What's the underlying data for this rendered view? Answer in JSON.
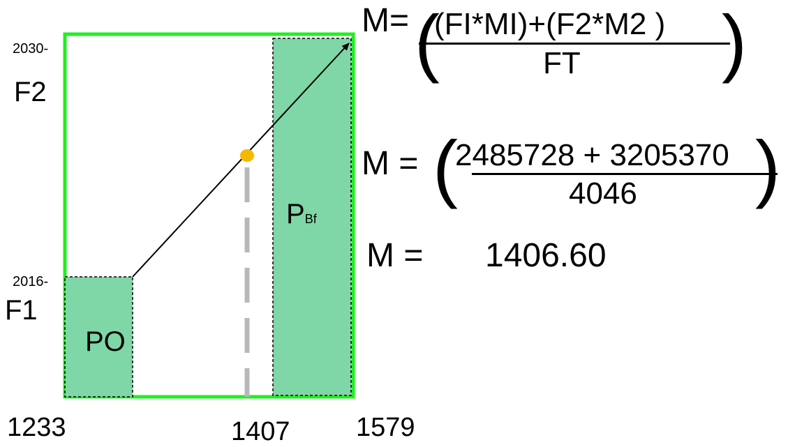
{
  "colors": {
    "frame": "#22ee22",
    "region_fill": "#7fd6a6",
    "point": "#f5b800",
    "dash_line": "#b8b8b8"
  },
  "y_axis": {
    "top_tick": "2030-",
    "top_label": "F2",
    "bottom_tick": "2016-",
    "bottom_label": "F1"
  },
  "x_axis": {
    "left": "1233",
    "middle": "1407",
    "right": "1579"
  },
  "regions": {
    "left_label": "PO",
    "right_label_main": "P",
    "right_label_sub": "Bf"
  },
  "formula": {
    "line1_lhs": "M=",
    "line1_num": "(FI*MI)+(F2*M2 )",
    "line1_den": "FT",
    "open_paren": "(",
    "close_paren": ")",
    "line2_lhs": "M =",
    "line2_num_prefix": "2",
    "line2_num_rest": "485728 + 3205370",
    "line2_den": "4046",
    "line3_lhs": "M =",
    "line3_value": "1406.60"
  }
}
